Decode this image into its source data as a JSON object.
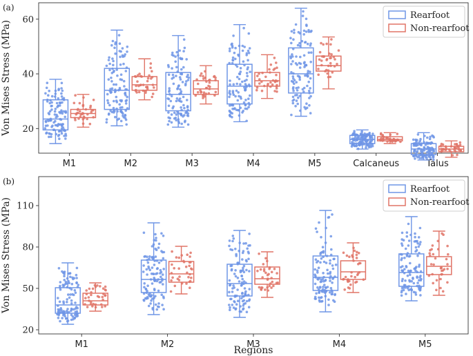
{
  "chart_data": [
    {
      "type": "box",
      "panel_label": "(a)",
      "ylabel": "Von Mises Stress (MPa)",
      "xlabel": "",
      "ylim": [
        11,
        66
      ],
      "yticks": [
        20,
        40,
        60
      ],
      "categories": [
        "M1",
        "M2",
        "M3",
        "M4",
        "M5",
        "Calcaneus",
        "Talus"
      ],
      "legend": [
        "Rearfoot",
        "Non-rearfoot"
      ],
      "legend_position": "top-right",
      "series": [
        {
          "name": "Rearfoot",
          "color": "#6f95e6",
          "n": 110,
          "boxes": [
            {
              "min": 14.5,
              "q1": 19.5,
              "median": 23.5,
              "q3": 30.5,
              "max": 38.0
            },
            {
              "min": 21.0,
              "q1": 27.0,
              "median": 34.0,
              "q3": 42.0,
              "max": 56.0
            },
            {
              "min": 20.5,
              "q1": 26.5,
              "median": 32.5,
              "q3": 40.5,
              "max": 54.0
            },
            {
              "min": 22.5,
              "q1": 29.0,
              "median": 35.5,
              "q3": 43.5,
              "max": 58.0
            },
            {
              "min": 24.5,
              "q1": 33.0,
              "median": 40.0,
              "q3": 49.5,
              "max": 64.0
            },
            {
              "min": 12.5,
              "q1": 14.5,
              "median": 16.0,
              "q3": 17.5,
              "max": 19.5
            },
            {
              "min": 8.5,
              "q1": 10.5,
              "median": 12.5,
              "q3": 14.5,
              "max": 18.5
            }
          ]
        },
        {
          "name": "Non-rearfoot",
          "color": "#e07467",
          "n": 35,
          "boxes": [
            {
              "min": 20.5,
              "q1": 24.0,
              "median": 25.5,
              "q3": 27.0,
              "max": 32.5
            },
            {
              "min": 30.5,
              "q1": 34.0,
              "median": 36.0,
              "q3": 39.0,
              "max": 45.5
            },
            {
              "min": 29.0,
              "q1": 32.5,
              "median": 34.5,
              "q3": 37.5,
              "max": 43.0
            },
            {
              "min": 31.0,
              "q1": 35.5,
              "median": 37.5,
              "q3": 40.5,
              "max": 47.0
            },
            {
              "min": 34.5,
              "q1": 41.0,
              "median": 43.0,
              "q3": 46.5,
              "max": 53.5
            },
            {
              "min": 14.5,
              "q1": 15.5,
              "median": 16.0,
              "q3": 17.0,
              "max": 18.5
            },
            {
              "min": 9.5,
              "q1": 11.5,
              "median": 12.5,
              "q3": 13.5,
              "max": 15.5
            }
          ]
        }
      ]
    },
    {
      "type": "box",
      "panel_label": "(b)",
      "ylabel": "Von Mises Stress (MPa)",
      "xlabel": "Regions",
      "ylim": [
        17,
        131
      ],
      "yticks": [
        20,
        50,
        80,
        110
      ],
      "categories": [
        "M1",
        "M2",
        "M3",
        "M4",
        "M5"
      ],
      "legend": [
        "Rearfoot",
        "Non-rearfoot"
      ],
      "legend_position": "top-right",
      "series": [
        {
          "name": "Rearfoot",
          "color": "#6f95e6",
          "n": 110,
          "boxes": [
            {
              "min": 24.0,
              "q1": 32.0,
              "median": 38.0,
              "q3": 50.5,
              "max": 68.5
            },
            {
              "min": 31.0,
              "q1": 47.0,
              "median": 56.5,
              "q3": 70.5,
              "max": 97.5
            },
            {
              "min": 29.0,
              "q1": 44.5,
              "median": 53.5,
              "q3": 67.5,
              "max": 92.0
            },
            {
              "min": 33.0,
              "q1": 48.5,
              "median": 58.0,
              "q3": 73.5,
              "max": 106.5
            },
            {
              "min": 41.0,
              "q1": 51.5,
              "median": 61.5,
              "q3": 75.0,
              "max": 102.0
            }
          ]
        },
        {
          "name": "Non-rearfoot",
          "color": "#e07467",
          "n": 35,
          "boxes": [
            {
              "min": 33.5,
              "q1": 38.0,
              "median": 41.0,
              "q3": 46.5,
              "max": 54.0
            },
            {
              "min": 46.0,
              "q1": 54.5,
              "median": 60.5,
              "q3": 69.5,
              "max": 80.5
            },
            {
              "min": 43.5,
              "q1": 53.0,
              "median": 57.0,
              "q3": 65.5,
              "max": 76.5
            },
            {
              "min": 47.0,
              "q1": 56.5,
              "median": 62.0,
              "q3": 70.0,
              "max": 83.0
            },
            {
              "min": 45.0,
              "q1": 60.0,
              "median": 66.0,
              "q3": 73.0,
              "max": 91.5
            }
          ]
        }
      ]
    }
  ]
}
